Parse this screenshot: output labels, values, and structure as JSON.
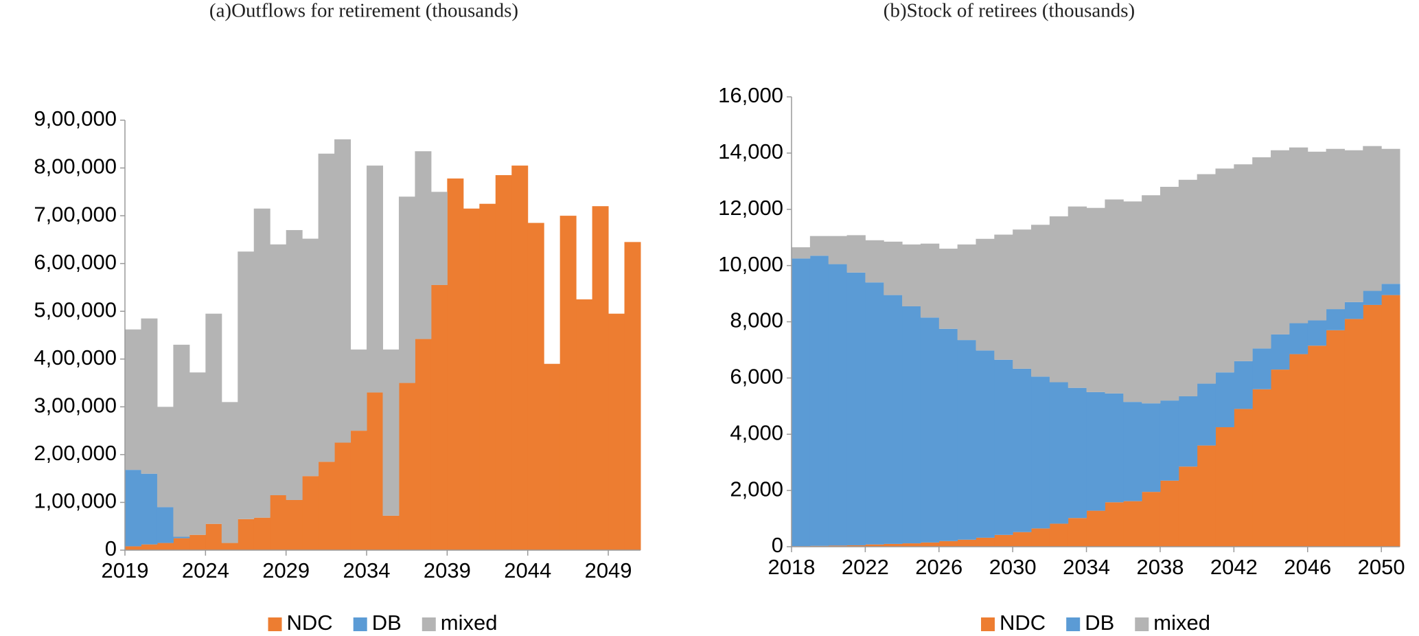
{
  "chart_data": [
    {
      "type": "bar",
      "stacked": true,
      "title": "(a)Outflows for retirement (thousands)",
      "categories": [
        2019,
        null,
        null,
        null,
        null,
        2024,
        null,
        null,
        null,
        null,
        2029,
        null,
        null,
        null,
        null,
        2034,
        null,
        null,
        null,
        null,
        2039,
        null,
        null,
        null,
        null,
        2044,
        null,
        null,
        null,
        null,
        2049,
        null
      ],
      "series": [
        {
          "name": "NDC",
          "color": "#ED7D31",
          "values": [
            8000,
            12000,
            15000,
            25000,
            32000,
            55000,
            15000,
            65000,
            68000,
            115000,
            105000,
            155000,
            185000,
            225000,
            250000,
            330000,
            72000,
            350000,
            442000,
            555000,
            778000,
            715000,
            725000,
            785000,
            805000,
            685000,
            390000,
            700000,
            525000,
            720000,
            495000,
            645000
          ]
        },
        {
          "name": "DB",
          "color": "#5B9BD5",
          "values": [
            160000,
            148000,
            75000,
            3000,
            0,
            0,
            0,
            0,
            0,
            0,
            0,
            0,
            0,
            0,
            0,
            0,
            0,
            0,
            0,
            0,
            0,
            0,
            0,
            0,
            0,
            0,
            0,
            0,
            0,
            0,
            0,
            0
          ]
        },
        {
          "name": "mixed",
          "color": "#B4B4B4",
          "values": [
            294000,
            325000,
            210000,
            402000,
            340000,
            440000,
            295000,
            560000,
            647000,
            525000,
            565000,
            497000,
            645000,
            635000,
            170000,
            475000,
            348000,
            390000,
            393000,
            195000,
            0,
            0,
            0,
            0,
            0,
            0,
            0,
            0,
            0,
            0,
            0,
            0
          ]
        }
      ],
      "ylim": [
        0,
        900000
      ],
      "yticks": [
        0,
        {
          "value": 100000,
          "label": "1,00,000"
        },
        {
          "value": 200000,
          "label": "2,00,000"
        },
        {
          "value": 300000,
          "label": "3,00,000"
        },
        {
          "value": 400000,
          "label": "4,00,000"
        },
        {
          "value": 500000,
          "label": "5,00,000"
        },
        {
          "value": 600000,
          "label": "6,00,000"
        },
        {
          "value": 700000,
          "label": "7,00,000"
        },
        {
          "value": 800000,
          "label": "8,00,000"
        },
        {
          "value": 900000,
          "label": "9,00,000"
        }
      ],
      "legend": "bottom"
    },
    {
      "type": "bar",
      "stacked": true,
      "title": "(b)Stock of retirees (thousands)",
      "categories": [
        2018,
        null,
        null,
        null,
        2022,
        null,
        null,
        null,
        2026,
        null,
        null,
        null,
        2030,
        null,
        null,
        null,
        2034,
        null,
        null,
        null,
        2038,
        null,
        null,
        null,
        2042,
        null,
        null,
        null,
        2046,
        null,
        null,
        null,
        2050
      ],
      "series": [
        {
          "name": "NDC",
          "color": "#ED7D31",
          "values": [
            20,
            30,
            40,
            50,
            80,
            100,
            120,
            150,
            200,
            250,
            320,
            420,
            520,
            650,
            820,
            1020,
            1280,
            1580,
            1620,
            1950,
            2350,
            2850,
            3600,
            4250,
            4900,
            5600,
            6300,
            6850,
            7150,
            7700,
            8100,
            8600,
            8950
          ]
        },
        {
          "name": "DB",
          "color": "#5B9BD5",
          "values": [
            10230,
            10320,
            10010,
            9700,
            9320,
            8850,
            8430,
            8000,
            7550,
            7100,
            6660,
            6230,
            5810,
            5400,
            5030,
            4630,
            4220,
            3870,
            3530,
            3150,
            2850,
            2500,
            2200,
            1950,
            1700,
            1450,
            1250,
            1100,
            900,
            750,
            600,
            500,
            400
          ]
        },
        {
          "name": "mixed",
          "color": "#B4B4B4",
          "values": [
            400,
            700,
            1000,
            1330,
            1500,
            1900,
            2200,
            2630,
            2850,
            3400,
            3970,
            4450,
            4950,
            5400,
            5900,
            6450,
            6550,
            6900,
            7130,
            7400,
            7600,
            7700,
            7450,
            7250,
            7000,
            6800,
            6550,
            6250,
            6000,
            5700,
            5400,
            5150,
            4800
          ]
        }
      ],
      "ylim": [
        0,
        16000
      ],
      "yticks": [
        0,
        {
          "value": 2000,
          "label": "2,000"
        },
        {
          "value": 4000,
          "label": "4,000"
        },
        {
          "value": 6000,
          "label": "6,000"
        },
        {
          "value": 8000,
          "label": "8,000"
        },
        {
          "value": 10000,
          "label": "10,000"
        },
        {
          "value": 12000,
          "label": "12,000"
        },
        {
          "value": 14000,
          "label": "14,000"
        },
        {
          "value": 16000,
          "label": "16,000"
        }
      ],
      "legend": "bottom"
    }
  ]
}
